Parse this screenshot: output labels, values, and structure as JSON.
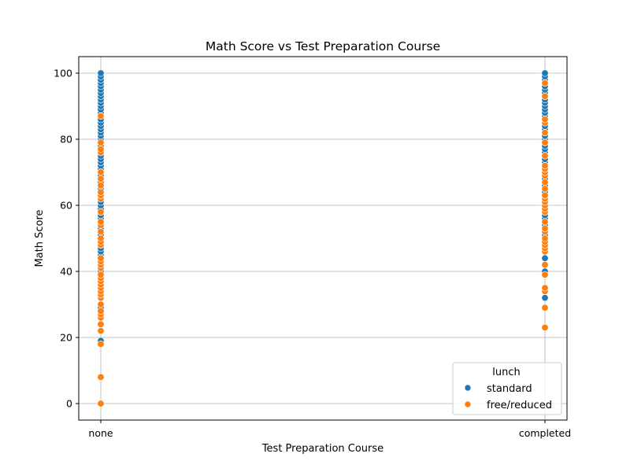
{
  "chart_data": {
    "type": "scatter",
    "title": "Math Score vs Test Preparation Course",
    "xlabel": "Test Preparation Course",
    "ylabel": "Math Score",
    "categories": [
      "none",
      "completed"
    ],
    "ylim": [
      -5,
      105
    ],
    "yticks": [
      0,
      20,
      40,
      60,
      80,
      100
    ],
    "grid": true,
    "legend": {
      "title": "lunch",
      "placement": "lower-right",
      "entries": [
        "standard",
        "free/reduced"
      ]
    },
    "colors": {
      "standard": "#1f77b4",
      "free/reduced": "#ff7f0e"
    },
    "series": [
      {
        "name": "standard",
        "points": {
          "none": [
            19,
            29,
            40,
            45,
            46,
            47,
            48,
            49,
            50,
            51,
            52,
            53,
            54,
            55,
            56,
            57,
            58,
            59,
            60,
            61,
            62,
            63,
            64,
            65,
            66,
            67,
            68,
            69,
            70,
            71,
            72,
            73,
            74,
            75,
            76,
            77,
            78,
            79,
            80,
            81,
            82,
            83,
            84,
            85,
            86,
            87,
            88,
            89,
            90,
            91,
            92,
            93,
            94,
            95,
            96,
            97,
            98,
            99,
            100
          ],
          "completed": [
            32,
            40,
            44,
            49,
            50,
            51,
            52,
            53,
            54,
            55,
            56,
            57,
            58,
            59,
            60,
            61,
            62,
            63,
            64,
            65,
            66,
            67,
            68,
            69,
            70,
            71,
            72,
            73,
            74,
            75,
            76,
            77,
            78,
            79,
            80,
            81,
            82,
            83,
            84,
            85,
            86,
            87,
            88,
            89,
            90,
            91,
            92,
            93,
            94,
            95,
            96,
            97,
            98,
            99,
            100
          ]
        }
      },
      {
        "name": "free/reduced",
        "points": {
          "none": [
            0,
            8,
            18,
            22,
            24,
            26,
            27,
            28,
            30,
            32,
            33,
            34,
            35,
            36,
            37,
            38,
            39,
            41,
            42,
            43,
            44,
            48,
            49,
            50,
            52,
            54,
            55,
            58,
            62,
            63,
            64,
            66,
            68,
            70,
            76,
            77,
            79,
            87
          ],
          "completed": [
            23,
            29,
            34,
            35,
            39,
            42,
            46,
            47,
            48,
            49,
            50,
            52,
            53,
            55,
            58,
            59,
            60,
            61,
            62,
            63,
            65,
            67,
            69,
            70,
            71,
            72,
            75,
            79,
            82,
            85,
            86,
            93,
            97
          ]
        }
      }
    ]
  }
}
